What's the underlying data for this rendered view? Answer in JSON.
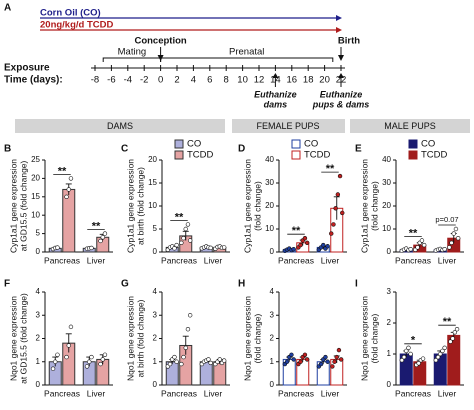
{
  "figure": {
    "timeline": {
      "label": "A",
      "treatments": [
        {
          "name": "Corn Oil (CO)",
          "color": "#1f1f8a"
        },
        {
          "name": "20ng/kg/d TCDD",
          "color": "#b01c1c"
        }
      ],
      "axis_label": [
        "Exposure",
        "Time (days):"
      ],
      "xlim": [
        -8,
        22
      ],
      "xticks": [
        -8,
        -6,
        -4,
        -2,
        0,
        2,
        4,
        6,
        8,
        10,
        12,
        14,
        16,
        18,
        20,
        22
      ],
      "events": [
        {
          "label": "Conception",
          "day": 0
        },
        {
          "label": "Birth",
          "day": 22
        }
      ],
      "spans": [
        {
          "label": "Mating",
          "start": -7,
          "end": 0
        },
        {
          "label": "Prenatal",
          "start": 0,
          "end": 21
        }
      ],
      "euthanasia": [
        {
          "lines": [
            "Euthanize",
            "dams"
          ],
          "day": 14
        },
        {
          "lines": [
            "Euthanize",
            "pups & dams"
          ],
          "day": 22
        }
      ]
    },
    "groups": [
      {
        "label": "DAMS"
      },
      {
        "label": "FEMALE PUPS"
      },
      {
        "label": "MALE PUPS"
      }
    ]
  },
  "chart_data": [
    {
      "type": "bar",
      "label": "B",
      "ylabel": [
        "Cyp1a1 gene expression",
        "at GD15.5 (fold change)"
      ],
      "categories": [
        "Pancreas",
        "Liver"
      ],
      "ylim": [
        0,
        25
      ],
      "yticks": [
        0,
        5,
        10,
        15,
        20,
        25
      ],
      "legend": false,
      "series": [
        {
          "name": "CO",
          "color": "#aeb0dc",
          "edgecolor": "#333333",
          "point_color": "#ffffff",
          "values": [
            1,
            1
          ],
          "errors": [
            0.2,
            0.2
          ],
          "points": [
            [
              0.8,
              1.1,
              1.2
            ],
            [
              0.9,
              1.0,
              1.1
            ]
          ]
        },
        {
          "name": "TCDD",
          "color": "#e5a3a3",
          "edgecolor": "#333333",
          "point_color": "#ffffff",
          "values": [
            17,
            4
          ],
          "errors": [
            1.5,
            0.8
          ],
          "points": [
            [
              15,
              17,
              20
            ],
            [
              3,
              4,
              5
            ]
          ]
        }
      ],
      "annotations": [
        {
          "text": "**",
          "category": "Pancreas"
        },
        {
          "text": "**",
          "category": "Liver"
        }
      ]
    },
    {
      "type": "bar",
      "label": "C",
      "ylabel": [
        "Cyp1a1 gene expression",
        "at birth (fold change)"
      ],
      "categories": [
        "Pancreas",
        "Liver"
      ],
      "ylim": [
        0,
        20
      ],
      "yticks": [
        0,
        5,
        10,
        15,
        20
      ],
      "legend": true,
      "series": [
        {
          "name": "CO",
          "color": "#aeb0dc",
          "edgecolor": "#333333",
          "point_color": "#ffffff",
          "values": [
            1,
            1
          ],
          "errors": [
            0.2,
            0.2
          ],
          "points": [
            [
              0.5,
              1,
              1.2,
              0.8,
              1.5
            ],
            [
              0.8,
              1,
              1.2,
              1,
              0.9
            ]
          ]
        },
        {
          "name": "TCDD",
          "color": "#e5a3a3",
          "edgecolor": "#333333",
          "point_color": "#ffffff",
          "values": [
            3.5,
            1
          ],
          "errors": [
            1,
            0.2
          ],
          "points": [
            [
              2,
              3,
              5,
              6,
              2.5
            ],
            [
              0.7,
              1.1,
              1.2,
              0.9,
              1
            ]
          ]
        }
      ],
      "annotations": [
        {
          "text": "**",
          "category": "Pancreas"
        }
      ]
    },
    {
      "type": "bar",
      "label": "D",
      "ylabel": [
        "Cyp1a1 gene expression",
        "(fold change)"
      ],
      "categories": [
        "Pancreas",
        "Liver"
      ],
      "ylim": [
        0,
        40
      ],
      "yticks": [
        0,
        10,
        20,
        30,
        40
      ],
      "legend": true,
      "series": [
        {
          "name": "CO",
          "color": "#ffffff",
          "edgecolor": "#1f3fa0",
          "point_color": "#1f3fa0",
          "values": [
            1,
            2
          ],
          "errors": [
            0.3,
            0.6
          ],
          "points": [
            [
              0.5,
              1,
              1.5,
              0.8,
              1.2
            ],
            [
              1,
              2,
              3,
              1.5,
              2.5
            ]
          ]
        },
        {
          "name": "TCDD",
          "color": "#ffffff",
          "edgecolor": "#c02020",
          "point_color": "#c02020",
          "values": [
            4,
            19
          ],
          "errors": [
            1.2,
            5
          ],
          "points": [
            [
              2,
              3,
              5,
              6,
              4
            ],
            [
              8,
              12,
              19,
              25,
              33,
              17
            ]
          ]
        }
      ],
      "annotations": [
        {
          "text": "**",
          "category": "Pancreas"
        },
        {
          "text": "**",
          "category": "Liver"
        }
      ]
    },
    {
      "type": "bar",
      "label": "E",
      "ylabel": [
        "Cyp1a1 gene expression",
        "(fold change)"
      ],
      "categories": [
        "Pancreas",
        "Liver"
      ],
      "ylim": [
        0,
        40
      ],
      "yticks": [
        0,
        10,
        20,
        30,
        40
      ],
      "legend": true,
      "series": [
        {
          "name": "CO",
          "color": "#1a1a70",
          "edgecolor": "#1a1a70",
          "point_color": "#ffffff",
          "values": [
            1,
            1
          ],
          "errors": [
            0.3,
            0.3
          ],
          "points": [
            [
              0.5,
              1,
              1.5,
              0.8,
              1.2
            ],
            [
              0.6,
              1,
              1.3,
              0.9,
              1.2
            ]
          ]
        },
        {
          "name": "TCDD",
          "color": "#a01c1c",
          "edgecolor": "#a01c1c",
          "point_color": "#ffffff",
          "values": [
            3,
            6
          ],
          "errors": [
            1,
            2
          ],
          "points": [
            [
              1,
              2,
              4,
              5,
              3
            ],
            [
              2,
              4,
              8,
              10,
              6
            ]
          ]
        }
      ],
      "annotations": [
        {
          "text": "**",
          "category": "Pancreas"
        },
        {
          "text": "p=0.07",
          "category": "Liver"
        }
      ]
    },
    {
      "type": "bar",
      "label": "F",
      "ylabel": [
        "Nqo1 gene expression",
        "at GD15.5 (fold change)"
      ],
      "categories": [
        "Pancreas",
        "Liver"
      ],
      "ylim": [
        0,
        4
      ],
      "yticks": [
        0,
        1,
        2,
        3,
        4
      ],
      "legend": false,
      "series": [
        {
          "name": "CO",
          "color": "#aeb0dc",
          "edgecolor": "#333333",
          "point_color": "#ffffff",
          "values": [
            1,
            1
          ],
          "errors": [
            0.2,
            0.2
          ],
          "points": [
            [
              0.7,
              1.0,
              1.3
            ],
            [
              0.8,
              1.0,
              1.2
            ]
          ]
        },
        {
          "name": "TCDD",
          "color": "#e5a3a3",
          "edgecolor": "#333333",
          "point_color": "#ffffff",
          "values": [
            1.8,
            1.1
          ],
          "errors": [
            0.4,
            0.2
          ],
          "points": [
            [
              1.2,
              1.7,
              2.5
            ],
            [
              0.9,
              1.1,
              1.3
            ]
          ]
        }
      ],
      "annotations": []
    },
    {
      "type": "bar",
      "label": "G",
      "ylabel": [
        "Nqo1 gene expression",
        "at birth (fold change)"
      ],
      "categories": [
        "Pancreas",
        "Liver"
      ],
      "ylim": [
        0,
        4
      ],
      "yticks": [
        0,
        1,
        2,
        3,
        4
      ],
      "legend": false,
      "series": [
        {
          "name": "CO",
          "color": "#aeb0dc",
          "edgecolor": "#333333",
          "point_color": "#ffffff",
          "values": [
            1,
            1
          ],
          "errors": [
            0.1,
            0.05
          ],
          "points": [
            [
              0.8,
              0.9,
              1.1,
              1.2,
              1.0
            ],
            [
              0.9,
              1.0,
              1.05,
              1.1,
              0.95
            ]
          ]
        },
        {
          "name": "TCDD",
          "color": "#e5a3a3",
          "edgecolor": "#333333",
          "point_color": "#ffffff",
          "values": [
            1.7,
            1
          ],
          "errors": [
            0.4,
            0.1
          ],
          "points": [
            [
              0.9,
              1.2,
              1.6,
              2.4,
              3.0
            ],
            [
              0.9,
              1.0,
              1.1,
              0.95,
              1.05
            ]
          ]
        }
      ],
      "annotations": []
    },
    {
      "type": "bar",
      "label": "H",
      "ylabel": [
        "Nqo1 gene expression",
        "(fold change)"
      ],
      "categories": [
        "Pancreas",
        "Liver"
      ],
      "ylim": [
        0,
        4
      ],
      "yticks": [
        0,
        1,
        2,
        3,
        4
      ],
      "legend": false,
      "series": [
        {
          "name": "CO",
          "color": "#ffffff",
          "edgecolor": "#1f3fa0",
          "point_color": "#1f3fa0",
          "values": [
            1.1,
            1
          ],
          "errors": [
            0.1,
            0.1
          ],
          "points": [
            [
              0.9,
              1.0,
              1.2,
              1.3,
              1.1
            ],
            [
              0.8,
              0.9,
              1.1,
              1.2,
              1.0
            ]
          ]
        },
        {
          "name": "TCDD",
          "color": "#ffffff",
          "edgecolor": "#c02020",
          "point_color": "#c02020",
          "values": [
            1.1,
            1.1
          ],
          "errors": [
            0.1,
            0.15
          ],
          "points": [
            [
              0.9,
              1.0,
              1.2,
              1.3,
              1.1
            ],
            [
              0.8,
              1.0,
              1.2,
              1.5,
              1.1
            ]
          ]
        }
      ],
      "annotations": []
    },
    {
      "type": "bar",
      "label": "I",
      "ylabel": [
        "Nqo1 gene expression",
        "(fold change)"
      ],
      "categories": [
        "Pancreas",
        "Liver"
      ],
      "ylim": [
        0,
        3
      ],
      "yticks": [
        0,
        1,
        2,
        3
      ],
      "legend": false,
      "series": [
        {
          "name": "CO",
          "color": "#1a1a70",
          "edgecolor": "#1a1a70",
          "point_color": "#ffffff",
          "values": [
            1,
            1
          ],
          "errors": [
            0.1,
            0.1
          ],
          "points": [
            [
              0.8,
              0.9,
              1.1,
              1.2,
              1.0
            ],
            [
              0.8,
              0.9,
              1.0,
              1.1,
              1.2
            ]
          ]
        },
        {
          "name": "TCDD",
          "color": "#a01c1c",
          "edgecolor": "#a01c1c",
          "point_color": "#ffffff",
          "values": [
            0.75,
            1.6
          ],
          "errors": [
            0.05,
            0.1
          ],
          "points": [
            [
              0.65,
              0.7,
              0.8,
              0.85
            ],
            [
              1.4,
              1.5,
              1.7,
              1.8
            ]
          ]
        }
      ],
      "annotations": [
        {
          "text": "*",
          "category": "Pancreas"
        },
        {
          "text": "**",
          "category": "Liver"
        }
      ]
    }
  ]
}
